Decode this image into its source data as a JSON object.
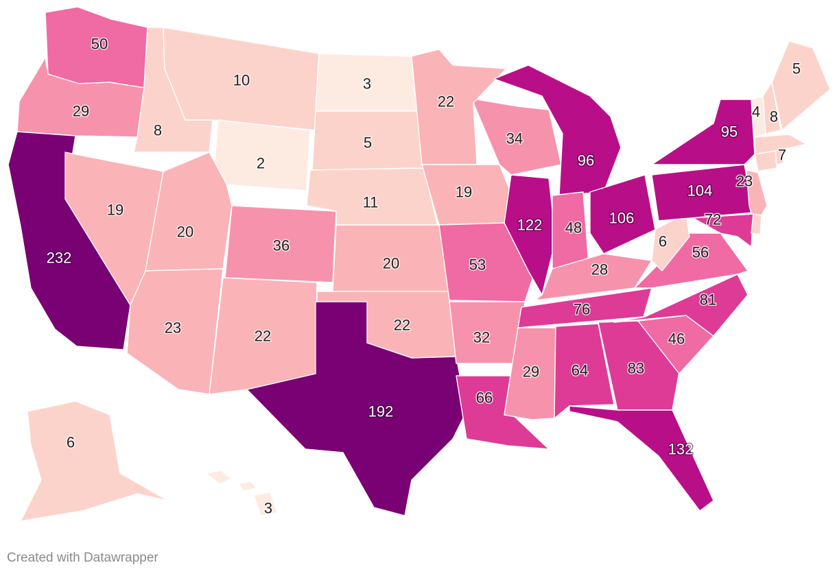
{
  "credit": "Created with Datawrapper",
  "scale": {
    "colors": [
      "#fdebe2",
      "#fcd3cb",
      "#fab3b7",
      "#f792ac",
      "#f06aa3",
      "#dd3b96",
      "#b80f88",
      "#7a0174"
    ]
  },
  "states": [
    {
      "id": "WA",
      "value": 50
    },
    {
      "id": "OR",
      "value": 29
    },
    {
      "id": "CA",
      "value": 232
    },
    {
      "id": "ID",
      "value": 8
    },
    {
      "id": "NV",
      "value": 19
    },
    {
      "id": "MT",
      "value": 10
    },
    {
      "id": "WY",
      "value": 2
    },
    {
      "id": "UT",
      "value": 20
    },
    {
      "id": "AZ",
      "value": 23
    },
    {
      "id": "CO",
      "value": 36
    },
    {
      "id": "NM",
      "value": 22
    },
    {
      "id": "ND",
      "value": 3
    },
    {
      "id": "SD",
      "value": 5
    },
    {
      "id": "NE",
      "value": 11
    },
    {
      "id": "KS",
      "value": 20
    },
    {
      "id": "OK",
      "value": 22
    },
    {
      "id": "TX",
      "value": 192
    },
    {
      "id": "MN",
      "value": 22
    },
    {
      "id": "IA",
      "value": 19
    },
    {
      "id": "MO",
      "value": 53
    },
    {
      "id": "AR",
      "value": 32
    },
    {
      "id": "LA",
      "value": 66
    },
    {
      "id": "WI",
      "value": 34
    },
    {
      "id": "IL",
      "value": 122
    },
    {
      "id": "MI",
      "value": 96
    },
    {
      "id": "IN",
      "value": 48
    },
    {
      "id": "OH",
      "value": 106
    },
    {
      "id": "KY",
      "value": 28
    },
    {
      "id": "TN",
      "value": 76
    },
    {
      "id": "MS",
      "value": 29
    },
    {
      "id": "AL",
      "value": 64
    },
    {
      "id": "GA",
      "value": 83
    },
    {
      "id": "FL",
      "value": 132
    },
    {
      "id": "SC",
      "value": 46
    },
    {
      "id": "NC",
      "value": 81
    },
    {
      "id": "VA",
      "value": 56
    },
    {
      "id": "WV",
      "value": 6
    },
    {
      "id": "PA",
      "value": 104
    },
    {
      "id": "NY",
      "value": 95
    },
    {
      "id": "NJ",
      "value": 23
    },
    {
      "id": "MD",
      "value": 72
    },
    {
      "id": "DE",
      "value": null
    },
    {
      "id": "CT",
      "value": null
    },
    {
      "id": "RI",
      "value": null
    },
    {
      "id": "MA",
      "value": 7
    },
    {
      "id": "VT",
      "value": 4
    },
    {
      "id": "NH",
      "value": 8
    },
    {
      "id": "ME",
      "value": 5
    },
    {
      "id": "AK",
      "value": 6
    },
    {
      "id": "HI",
      "value": 3
    }
  ]
}
